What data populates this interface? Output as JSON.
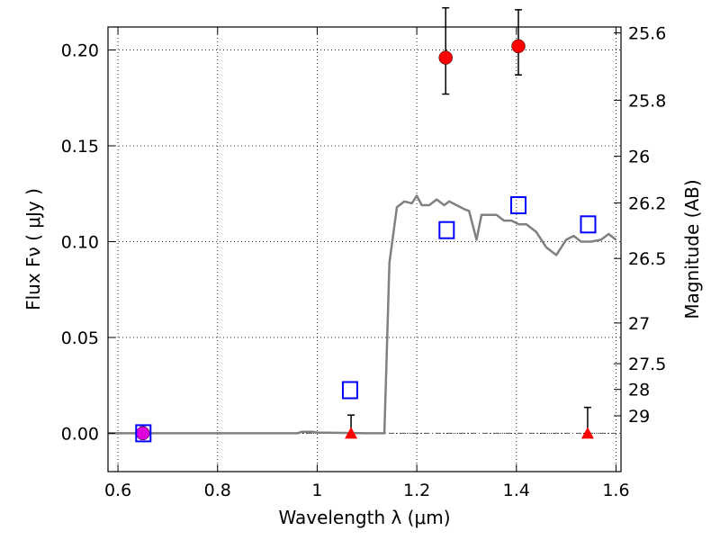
{
  "chart_data": {
    "type": "scatter",
    "title": "",
    "xlabel": "Wavelength  λ (μm)",
    "ylabel": "Flux  Fν  ( μJy )",
    "y2label": "Magnitude (AB)",
    "xlim": [
      0.58,
      1.61
    ],
    "ylim": [
      -0.02,
      0.212
    ],
    "grid": true,
    "x_ticks": [
      {
        "value": 0.6,
        "label": "0.6"
      },
      {
        "value": 0.8,
        "label": "0.8"
      },
      {
        "value": 1.0,
        "label": "1"
      },
      {
        "value": 1.2,
        "label": "1.2"
      },
      {
        "value": 1.4,
        "label": "1.4"
      },
      {
        "value": 1.6,
        "label": "1.6"
      }
    ],
    "y_ticks": [
      {
        "value": 0.0,
        "label": "0.00"
      },
      {
        "value": 0.05,
        "label": "0.05"
      },
      {
        "value": 0.1,
        "label": "0.10"
      },
      {
        "value": 0.15,
        "label": "0.15"
      },
      {
        "value": 0.2,
        "label": "0.20"
      }
    ],
    "y2_ticks": [
      {
        "value": 25.6,
        "label": "25.6"
      },
      {
        "value": 25.8,
        "label": "25.8"
      },
      {
        "value": 26.0,
        "label": "26"
      },
      {
        "value": 26.2,
        "label": "26.2"
      },
      {
        "value": 26.5,
        "label": "26.5"
      },
      {
        "value": 27.0,
        "label": "27"
      },
      {
        "value": 27.5,
        "label": "27.5"
      },
      {
        "value": 28.0,
        "label": "28"
      },
      {
        "value": 29.0,
        "label": "29"
      }
    ],
    "series": [
      {
        "kind": "line",
        "color": "#808080",
        "x": [
          0.58,
          0.96,
          0.97,
          0.99,
          1.0,
          1.05,
          1.1,
          1.135,
          1.145,
          1.16,
          1.175,
          1.19,
          1.2,
          1.21,
          1.225,
          1.24,
          1.255,
          1.265,
          1.28,
          1.295,
          1.305,
          1.32,
          1.33,
          1.345,
          1.36,
          1.375,
          1.39,
          1.405,
          1.42,
          1.44,
          1.46,
          1.48,
          1.5,
          1.515,
          1.53,
          1.55,
          1.57,
          1.585,
          1.6
        ],
        "y": [
          0.0,
          0.0,
          0.0008,
          0.0008,
          0.0004,
          0.0002,
          0.0,
          0.0,
          0.089,
          0.118,
          0.121,
          0.12,
          0.124,
          0.119,
          0.119,
          0.122,
          0.119,
          0.121,
          0.119,
          0.117,
          0.116,
          0.101,
          0.114,
          0.114,
          0.114,
          0.111,
          0.111,
          0.109,
          0.109,
          0.105,
          0.097,
          0.093,
          0.101,
          0.103,
          0.1,
          0.1,
          0.101,
          0.104,
          0.101
        ]
      },
      {
        "kind": "points",
        "marker": "circle",
        "color": "#ff0000",
        "points": [
          {
            "x": 1.258,
            "y": 0.196,
            "err_low": 0.019,
            "err_high": 0.026
          },
          {
            "x": 1.404,
            "y": 0.202,
            "err_low": 0.015,
            "err_high": 0.019
          }
        ]
      },
      {
        "kind": "points",
        "marker": "circle",
        "color": "#dd00dd",
        "points": [
          {
            "x": 0.65,
            "y": 0.0,
            "err_low": 0.002,
            "err_high": 0.004
          }
        ]
      },
      {
        "kind": "points",
        "marker": "triangle",
        "color": "#ff0000",
        "points": [
          {
            "x": 1.068,
            "y": 0.0,
            "err_low": 0.0,
            "err_high": 0.0095
          },
          {
            "x": 1.543,
            "y": 0.0,
            "err_low": 0.0,
            "err_high": 0.0135
          }
        ]
      },
      {
        "kind": "points",
        "marker": "open-square",
        "color": "#0000ff",
        "points": [
          {
            "x": 0.651,
            "y": 0.0
          },
          {
            "x": 1.066,
            "y": 0.0225
          },
          {
            "x": 1.26,
            "y": 0.106
          },
          {
            "x": 1.404,
            "y": 0.119
          },
          {
            "x": 1.544,
            "y": 0.109
          }
        ]
      }
    ]
  }
}
